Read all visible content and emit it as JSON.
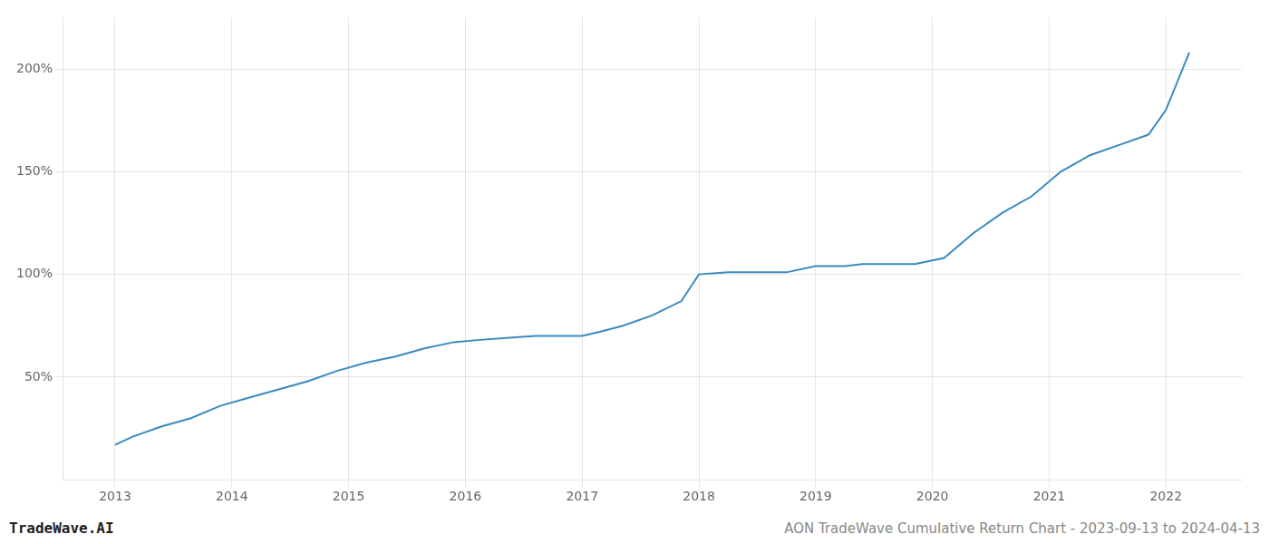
{
  "chart_data": {
    "type": "line",
    "title": "AON TradeWave Cumulative Return Chart - 2023-09-13 to 2024-04-13",
    "annotations": [
      "TradeWave.AI"
    ],
    "x": [
      2013.0,
      2013.15,
      2013.4,
      2013.65,
      2013.9,
      2014.15,
      2014.4,
      2014.65,
      2014.9,
      2015.15,
      2015.4,
      2015.65,
      2015.9,
      2016.1,
      2016.35,
      2016.6,
      2016.85,
      2017.0,
      2017.15,
      2017.35,
      2017.6,
      2017.85,
      2018.0,
      2018.25,
      2018.5,
      2018.75,
      2019.0,
      2019.25,
      2019.4,
      2019.6,
      2019.85,
      2020.1,
      2020.35,
      2020.6,
      2020.85,
      2021.1,
      2021.35,
      2021.6,
      2021.85,
      2022.0,
      2022.2
    ],
    "values": [
      17,
      21,
      26,
      30,
      36,
      40,
      44,
      48,
      53,
      57,
      60,
      64,
      67,
      68,
      69,
      70,
      70,
      70,
      72,
      75,
      80,
      87,
      100,
      101,
      101,
      101,
      104,
      104,
      105,
      105,
      105,
      108,
      120,
      130,
      138,
      150,
      158,
      163,
      168,
      180,
      208
    ],
    "color": "#3a8abf",
    "xlim": [
      2012.55,
      2022.65
    ],
    "xticks": [
      2013,
      2014,
      2015,
      2016,
      2017,
      2018,
      2019,
      2020,
      2021,
      2022
    ],
    "ylim": [
      0,
      225
    ],
    "yticks": [
      {
        "value": 50,
        "label": "50%"
      },
      {
        "value": 100,
        "label": "100%"
      },
      {
        "value": 150,
        "label": "150%"
      },
      {
        "value": 200,
        "label": "200%"
      }
    ],
    "grid": true
  }
}
